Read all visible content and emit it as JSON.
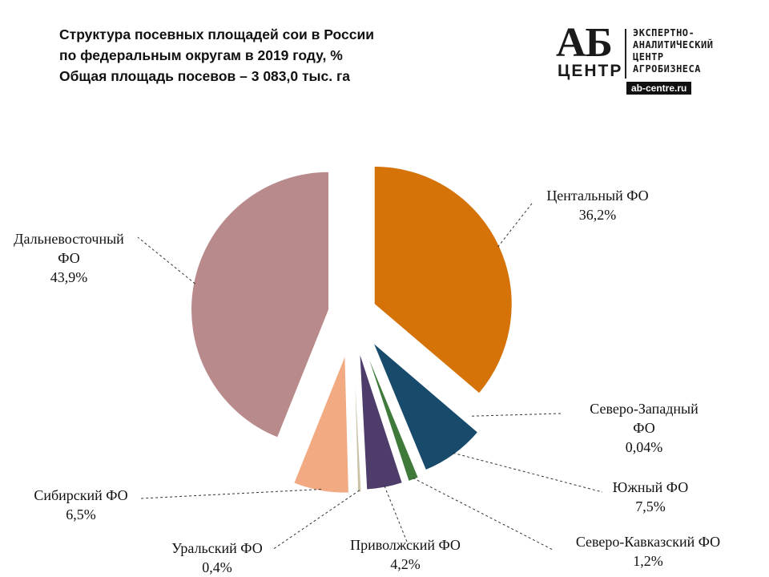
{
  "title": {
    "line1": "Структура посевных площадей сои в России",
    "line2": "по федеральным округам в 2019 году, %",
    "line3": "Общая площадь посевов – 3 083,0 тыс. га"
  },
  "logo": {
    "big": "АБ",
    "small": "ЦЕНТР",
    "line1": "ЭКСПЕРТНО-",
    "line2": "АНАЛИТИЧЕСКИЙ",
    "line3": "ЦЕНТР",
    "line4": "АГРОБИЗНЕСА",
    "site": "ab-centre.ru"
  },
  "chart_data": {
    "type": "pie",
    "title": "Структура посевных площадей сои в России по федеральным округам в 2019 году, %",
    "subtitle": "Общая площадь посевов – 3 083,0 тыс. га",
    "slices": [
      {
        "label": "Центальный ФО",
        "value": 36.2,
        "value_label": "36,2%",
        "color": "#D67308"
      },
      {
        "label": "Северо-Западный ФО",
        "value": 0.04,
        "value_label": "0,04%",
        "color": "#9DB0C6"
      },
      {
        "label": "Южный ФО",
        "value": 7.5,
        "value_label": "7,5%",
        "color": "#184B6B"
      },
      {
        "label": "Северо-Кавказский ФО",
        "value": 1.2,
        "value_label": "1,2%",
        "color": "#3F7A3A"
      },
      {
        "label": "Приволжский ФО",
        "value": 4.2,
        "value_label": "4,2%",
        "color": "#4E3C6B"
      },
      {
        "label": "Уральский ФО",
        "value": 0.4,
        "value_label": "0,4%",
        "color": "#C9C2A6"
      },
      {
        "label": "Сибирский ФО",
        "value": 6.5,
        "value_label": "6,5%",
        "color": "#F2AA82"
      },
      {
        "label": "Дальневосточный ФО",
        "value": 43.9,
        "value_label": "43,9%",
        "color": "#B98A8C"
      }
    ],
    "labels_display": [
      {
        "line1": "Центальный ФО",
        "line2": "36,2%"
      },
      {
        "line1": "Северо-Западный",
        "line2": "ФО",
        "line3": "0,04%"
      },
      {
        "line1": "Южный ФО",
        "line2": "7,5%"
      },
      {
        "line1": "Северо-Кавказский ФО",
        "line2": "1,2%"
      },
      {
        "line1": "Приволжский ФО",
        "line2": "4,2%"
      },
      {
        "line1": "Уральский ФО",
        "line2": "0,4%"
      },
      {
        "line1": "Сибирский ФО",
        "line2": "6,5%"
      },
      {
        "line1": "Дальневосточный",
        "line2": "ФО",
        "line3": "43,9%"
      }
    ]
  }
}
